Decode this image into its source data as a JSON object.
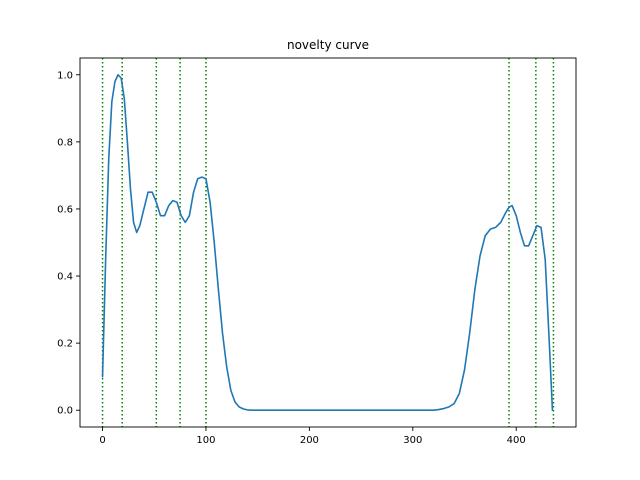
{
  "chart_data": {
    "type": "line",
    "title": "novelty curve",
    "xlabel": "",
    "ylabel": "",
    "xlim": [
      -21.8,
      457.8
    ],
    "ylim": [
      -0.05,
      1.05
    ],
    "xticks": [
      0,
      100,
      200,
      300,
      400
    ],
    "yticks": [
      0.0,
      0.2,
      0.4,
      0.6,
      0.8,
      1.0
    ],
    "xtick_labels": [
      "0",
      "100",
      "200",
      "300",
      "400"
    ],
    "ytick_labels": [
      "0.0",
      "0.2",
      "0.4",
      "0.6",
      "0.8",
      "1.0"
    ],
    "grid": false,
    "series": [
      {
        "color": "#1f77b4",
        "x": [
          0,
          3,
          6,
          9,
          12,
          15,
          18,
          21,
          24,
          27,
          30,
          33,
          36,
          40,
          44,
          48,
          52,
          56,
          60,
          64,
          68,
          72,
          76,
          80,
          84,
          88,
          92,
          96,
          100,
          104,
          108,
          112,
          116,
          120,
          124,
          128,
          132,
          136,
          140,
          145,
          150,
          160,
          200,
          250,
          300,
          320,
          325,
          330,
          335,
          340,
          345,
          350,
          355,
          360,
          365,
          370,
          375,
          380,
          385,
          390,
          393,
          396,
          400,
          404,
          408,
          412,
          416,
          420,
          424,
          428,
          432,
          435
        ],
        "values": [
          0.1,
          0.45,
          0.75,
          0.92,
          0.98,
          1.0,
          0.99,
          0.93,
          0.8,
          0.66,
          0.56,
          0.53,
          0.55,
          0.6,
          0.65,
          0.65,
          0.62,
          0.58,
          0.58,
          0.61,
          0.625,
          0.62,
          0.58,
          0.56,
          0.58,
          0.65,
          0.69,
          0.695,
          0.69,
          0.62,
          0.5,
          0.36,
          0.23,
          0.13,
          0.06,
          0.025,
          0.01,
          0.004,
          0.001,
          0.0,
          0.0,
          0.0,
          0.0,
          0.0,
          0.0,
          0.0,
          0.002,
          0.005,
          0.01,
          0.02,
          0.05,
          0.12,
          0.23,
          0.36,
          0.46,
          0.52,
          0.54,
          0.545,
          0.56,
          0.59,
          0.605,
          0.61,
          0.58,
          0.53,
          0.49,
          0.49,
          0.52,
          0.55,
          0.545,
          0.45,
          0.2,
          0.0
        ]
      }
    ],
    "vlines": {
      "color": "#008000",
      "style": "dotted",
      "x": [
        0,
        19,
        52,
        75,
        100,
        393,
        419,
        436
      ]
    }
  }
}
